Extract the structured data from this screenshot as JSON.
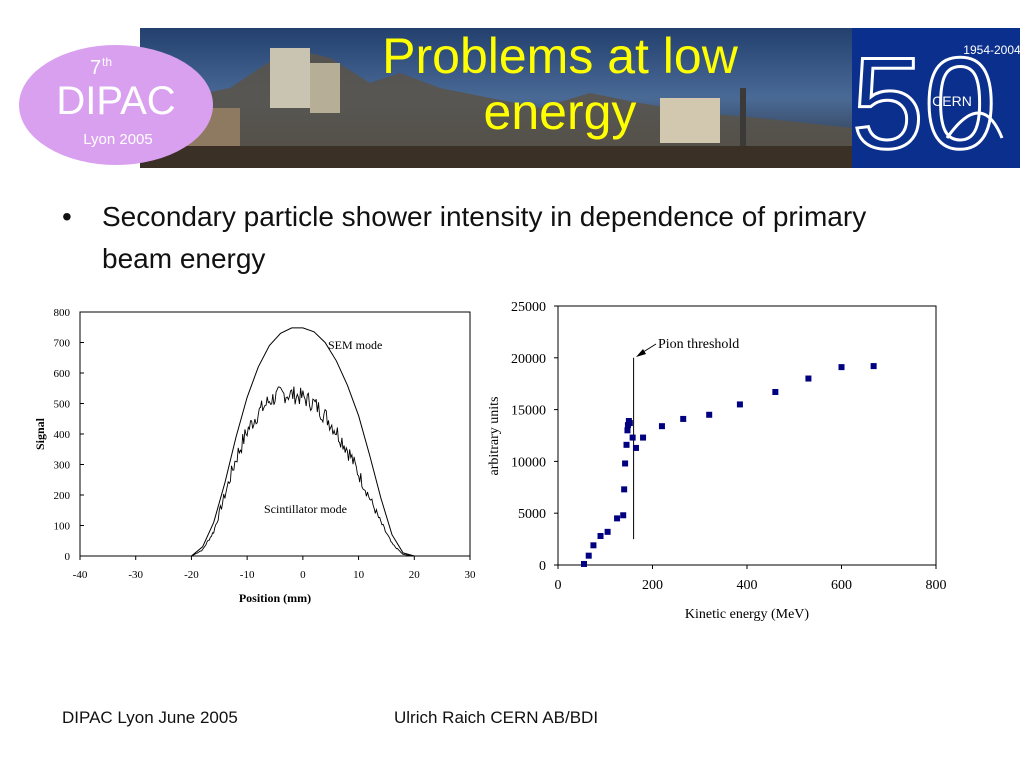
{
  "slide": {
    "title": "Problems at low energy",
    "bullet": "Secondary particle shower intensity in dependence of primary beam energy",
    "bullet_marker": "•"
  },
  "logo_dipac": {
    "number": "7",
    "sup": "th",
    "name": "DIPAC",
    "sub": "Lyon 2005"
  },
  "logo_cern": {
    "years": "1954-2004",
    "number": "50",
    "name": "CERN"
  },
  "footer": {
    "left": "DIPAC Lyon June 2005",
    "center": "Ulrich Raich CERN AB/BDI"
  },
  "colors": {
    "title": "#ffff00",
    "dipac_bubble": "#d9a0f0",
    "cern_bg": "#0a2f8c",
    "marker": "#000080"
  },
  "chart_data": [
    {
      "type": "line",
      "xlabel": "Position (mm)",
      "ylabel": "Signal",
      "xlim": [
        -40,
        30
      ],
      "ylim": [
        0,
        800
      ],
      "x_ticks": [
        "-40",
        "-30",
        "-20",
        "-10",
        "0",
        "10",
        "20",
        "30"
      ],
      "y_ticks": [
        "0",
        "100",
        "200",
        "300",
        "400",
        "500",
        "600",
        "700",
        "800"
      ],
      "annotations": [
        "SEM mode",
        "Scintillator mode"
      ],
      "series": [
        {
          "name": "SEM mode",
          "x": [
            -35,
            -20,
            -18,
            -16,
            -14,
            -12,
            -10,
            -8,
            -6,
            -4,
            -2,
            0,
            2,
            4,
            6,
            8,
            10,
            12,
            14,
            16,
            18,
            20,
            26
          ],
          "y": [
            0,
            0,
            30,
            110,
            240,
            390,
            520,
            620,
            690,
            730,
            748,
            748,
            735,
            700,
            640,
            560,
            460,
            330,
            190,
            70,
            10,
            0,
            0
          ]
        },
        {
          "name": "Scintillator mode",
          "x": [
            -35,
            -20,
            -18,
            -16,
            -14,
            -12,
            -10,
            -8,
            -6,
            -4,
            -2,
            0,
            2,
            4,
            6,
            8,
            10,
            12,
            14,
            16,
            18,
            20,
            26
          ],
          "y": [
            0,
            0,
            20,
            80,
            200,
            320,
            410,
            470,
            510,
            530,
            530,
            520,
            500,
            460,
            410,
            350,
            270,
            190,
            110,
            40,
            5,
            0,
            0
          ]
        }
      ]
    },
    {
      "type": "scatter",
      "xlabel": "Kinetic energy (MeV)",
      "ylabel": "arbitrary units",
      "xlim": [
        0,
        800
      ],
      "ylim": [
        0,
        25000
      ],
      "x_ticks": [
        "0",
        "200",
        "400",
        "600",
        "800"
      ],
      "y_ticks": [
        "0",
        "5000",
        "10000",
        "15000",
        "20000",
        "25000"
      ],
      "annotation": "Pion threshold",
      "threshold_x": 160,
      "series": [
        {
          "x": [
            55,
            65,
            75,
            90,
            105,
            125,
            138,
            140,
            142,
            145,
            147,
            148,
            150,
            152,
            158,
            165,
            180,
            220,
            265,
            320,
            385,
            460,
            530,
            600,
            668
          ],
          "y": [
            100,
            900,
            1900,
            2800,
            3200,
            4500,
            4800,
            7300,
            9800,
            11600,
            13000,
            13500,
            13900,
            13700,
            12300,
            11300,
            12300,
            13400,
            14100,
            14500,
            15500,
            16700,
            18000,
            19100,
            19200
          ]
        }
      ]
    }
  ]
}
